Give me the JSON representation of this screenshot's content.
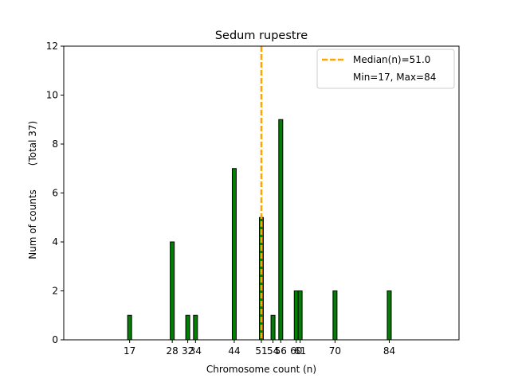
{
  "chart_data": {
    "type": "bar",
    "title": "Sedum rupestre",
    "xlabel": "Chromosome count (n)",
    "ylabel": "Num of counts",
    "ylabel_total": "(Total 37)",
    "x": [
      17,
      28,
      32,
      34,
      44,
      51,
      54,
      56,
      60,
      61,
      70,
      84
    ],
    "values": [
      1,
      4,
      1,
      1,
      7,
      5,
      1,
      9,
      2,
      2,
      2,
      2
    ],
    "xticks": [
      17,
      28,
      32,
      34,
      44,
      51,
      54,
      56,
      60,
      61,
      70,
      84
    ],
    "xtick_labels": [
      "17",
      "28",
      "32",
      "34",
      "44",
      "51",
      "54",
      "56",
      "60",
      "61",
      "70",
      "84"
    ],
    "yticks": [
      0,
      2,
      4,
      6,
      8,
      10,
      12
    ],
    "ylim": [
      0,
      12
    ],
    "xlim": [
      0,
      102
    ],
    "bar_color": "#008000",
    "median": 51.0,
    "median_color": "#FFA500",
    "legend": {
      "placement": "top-right",
      "entries": [
        "Median(n)=51.0",
        "Min=17, Max=84"
      ]
    },
    "grid": false
  }
}
